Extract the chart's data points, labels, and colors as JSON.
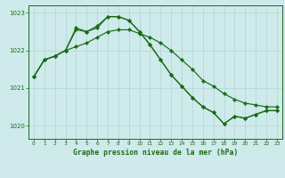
{
  "title": "Graphe pression niveau de la mer (hPa)",
  "background_color": "#ceeaea",
  "grid_color": "#b0d4d4",
  "line_color": "#1a6b1a",
  "ylim": [
    1019.65,
    1023.2
  ],
  "yticks": [
    1020,
    1021,
    1022,
    1023
  ],
  "ytick_labels": [
    "1020",
    "1021",
    "1022",
    "1023"
  ],
  "x_labels": [
    "0",
    "1",
    "2",
    "3",
    "4",
    "5",
    "6",
    "7",
    "8",
    "9",
    "10",
    "11",
    "12",
    "13",
    "14",
    "15",
    "16",
    "17",
    "18",
    "19",
    "20",
    "21",
    "22",
    "23"
  ],
  "s1": [
    1021.3,
    1021.75,
    1021.85,
    1022.0,
    1022.55,
    1022.5,
    1022.6,
    1022.9,
    1022.9,
    1022.8,
    1022.5,
    1022.15,
    1021.75,
    1021.35,
    1021.05,
    1020.75,
    1020.5,
    1020.35,
    1020.05,
    1020.25,
    1020.2,
    1020.3,
    1020.4,
    1020.4
  ],
  "s2": [
    1021.3,
    1021.75,
    1021.85,
    1022.0,
    1022.6,
    1022.5,
    1022.65,
    1022.9,
    1022.9,
    1022.8,
    1022.5,
    1022.15,
    1021.75,
    1021.35,
    1021.05,
    1020.75,
    1020.5,
    1020.35,
    1020.05,
    1020.25,
    1020.2,
    1020.3,
    1020.4,
    1020.4
  ],
  "s3": [
    1021.3,
    1021.75,
    1021.85,
    1022.0,
    1022.1,
    1022.2,
    1022.35,
    1022.5,
    1022.55,
    1022.55,
    1022.45,
    1022.35,
    1022.2,
    1022.0,
    1021.75,
    1021.5,
    1021.2,
    1021.05,
    1020.85,
    1020.7,
    1020.6,
    1020.55,
    1020.5,
    1020.5
  ]
}
